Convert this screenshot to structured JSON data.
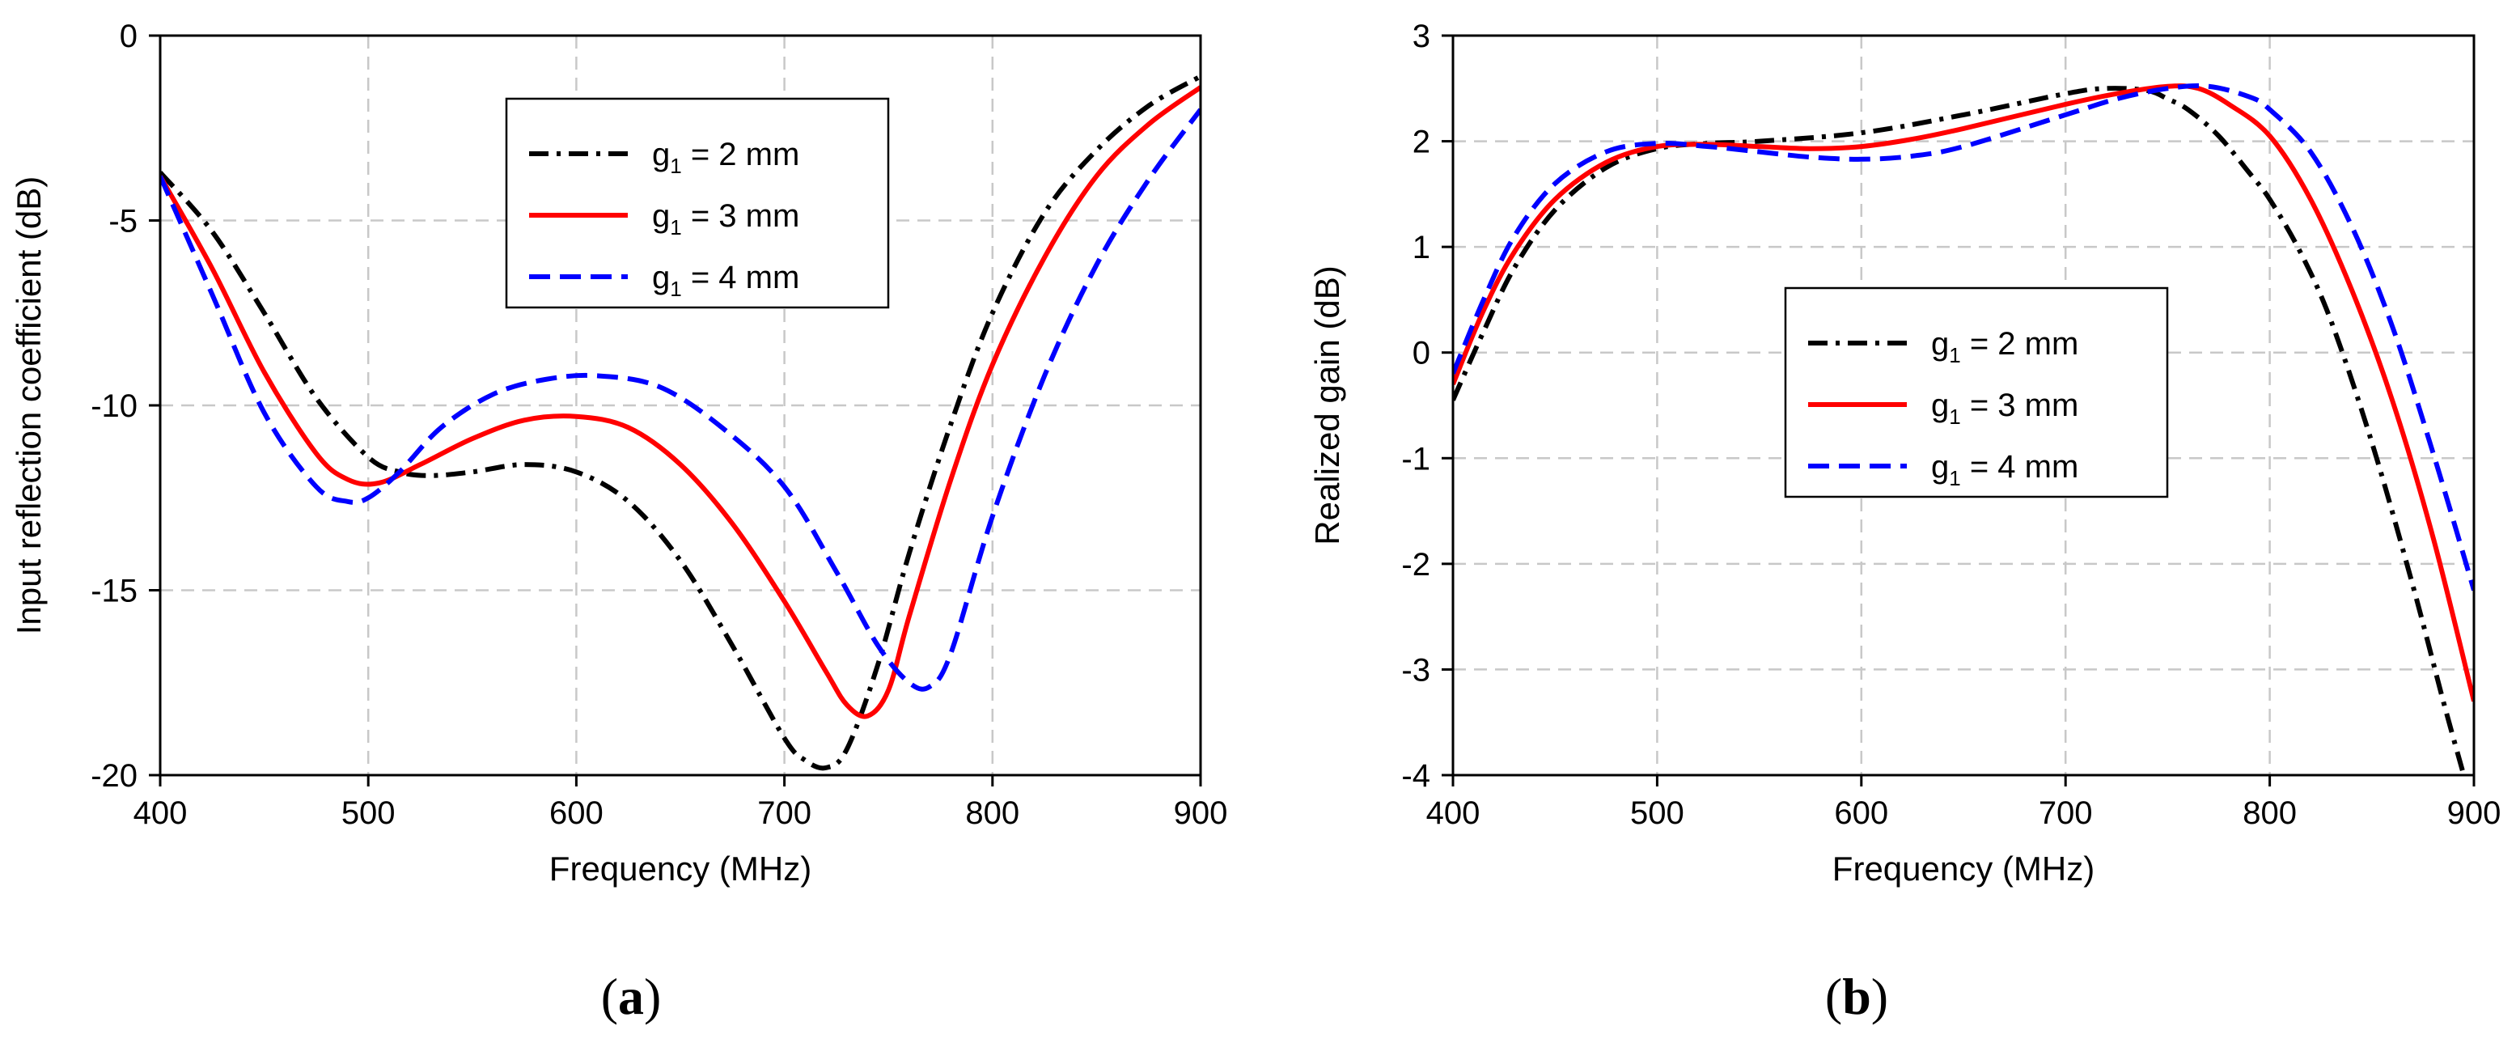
{
  "chart_data": [
    {
      "type": "line",
      "panel_label": "a",
      "title": "",
      "xlabel": "Frequency (MHz)",
      "ylabel": "Input reflection coefficient (dB)",
      "xlim": [
        400,
        900
      ],
      "ylim": [
        -20,
        0
      ],
      "xticks": [
        400,
        500,
        600,
        700,
        800,
        900
      ],
      "yticks": [
        -20,
        -15,
        -10,
        -5,
        0
      ],
      "grid": true,
      "legend_position": "top-right",
      "series": [
        {
          "name": "g1 = 2 mm",
          "label_main": "g",
          "label_sub": "1",
          "label_rest": " = 2 mm",
          "color": "#000000",
          "dash": "dashdot",
          "x": [
            400,
            425,
            450,
            475,
            500,
            515,
            530,
            550,
            575,
            600,
            625,
            650,
            675,
            700,
            710,
            720,
            730,
            745,
            760,
            780,
            800,
            825,
            850,
            875,
            900
          ],
          "y": [
            -3.7,
            -5.3,
            -7.5,
            -9.8,
            -11.4,
            -11.8,
            -11.9,
            -11.8,
            -11.6,
            -11.8,
            -12.6,
            -14.2,
            -16.5,
            -19.0,
            -19.6,
            -19.8,
            -19.3,
            -17.0,
            -14.0,
            -10.5,
            -7.5,
            -4.8,
            -3.1,
            -1.9,
            -1.1
          ]
        },
        {
          "name": "g1 = 3 mm",
          "label_main": "g",
          "label_sub": "1",
          "label_rest": " = 3 mm",
          "color": "#ff0000",
          "dash": "solid",
          "x": [
            400,
            425,
            450,
            475,
            490,
            505,
            525,
            550,
            575,
            600,
            625,
            650,
            675,
            700,
            720,
            730,
            740,
            750,
            760,
            780,
            800,
            825,
            850,
            875,
            900
          ],
          "y": [
            -3.8,
            -6.3,
            -9.1,
            -11.3,
            -12.0,
            -12.1,
            -11.6,
            -10.9,
            -10.4,
            -10.3,
            -10.6,
            -11.6,
            -13.2,
            -15.3,
            -17.2,
            -18.1,
            -18.4,
            -17.7,
            -15.7,
            -12.0,
            -8.9,
            -6.0,
            -3.8,
            -2.4,
            -1.4
          ]
        },
        {
          "name": "g1 = 4 mm",
          "label_main": "g",
          "label_sub": "1",
          "label_rest": " = 4 mm",
          "color": "#0000ff",
          "dash": "dashed",
          "x": [
            400,
            425,
            450,
            475,
            490,
            500,
            515,
            535,
            560,
            585,
            610,
            640,
            670,
            700,
            725,
            745,
            760,
            770,
            780,
            800,
            825,
            850,
            875,
            900
          ],
          "y": [
            -3.8,
            -7.0,
            -10.2,
            -12.2,
            -12.6,
            -12.5,
            -11.8,
            -10.6,
            -9.7,
            -9.3,
            -9.2,
            -9.5,
            -10.6,
            -12.2,
            -14.5,
            -16.5,
            -17.5,
            -17.6,
            -16.7,
            -13.0,
            -9.2,
            -6.2,
            -3.9,
            -2.0
          ]
        }
      ]
    },
    {
      "type": "line",
      "panel_label": "b",
      "title": "",
      "xlabel": "Frequency (MHz)",
      "ylabel": "Realized gain (dB)",
      "xlim": [
        400,
        900
      ],
      "ylim": [
        -4,
        3
      ],
      "xticks": [
        400,
        500,
        600,
        700,
        800,
        900
      ],
      "yticks": [
        -4,
        -3,
        -2,
        -1,
        0,
        1,
        2,
        3
      ],
      "grid": true,
      "legend_position": "center-right",
      "series": [
        {
          "name": "g1 = 2 mm",
          "label_main": "g",
          "label_sub": "1",
          "label_rest": " = 2 mm",
          "color": "#000000",
          "dash": "dashdot",
          "x": [
            400,
            415,
            430,
            450,
            475,
            500,
            525,
            550,
            600,
            650,
            700,
            720,
            740,
            750,
            760,
            775,
            790,
            800,
            815,
            830,
            850,
            870,
            885,
            895
          ],
          "y": [
            -0.45,
            0.2,
            0.8,
            1.35,
            1.75,
            1.93,
            1.98,
            2.0,
            2.08,
            2.25,
            2.45,
            2.5,
            2.48,
            2.4,
            2.3,
            2.05,
            1.7,
            1.45,
            0.95,
            0.3,
            -0.85,
            -2.2,
            -3.3,
            -4.0
          ]
        },
        {
          "name": "g1 = 3 mm",
          "label_main": "g",
          "label_sub": "1",
          "label_rest": " = 3 mm",
          "color": "#ff0000",
          "dash": "solid",
          "x": [
            400,
            415,
            430,
            450,
            475,
            500,
            525,
            550,
            575,
            600,
            625,
            650,
            700,
            725,
            750,
            765,
            780,
            800,
            820,
            840,
            860,
            880,
            900
          ],
          "y": [
            -0.3,
            0.4,
            0.95,
            1.45,
            1.8,
            1.95,
            1.97,
            1.95,
            1.93,
            1.95,
            2.02,
            2.12,
            2.35,
            2.45,
            2.52,
            2.5,
            2.35,
            2.05,
            1.45,
            0.6,
            -0.45,
            -1.75,
            -3.3
          ]
        },
        {
          "name": "g1 = 4 mm",
          "label_main": "g",
          "label_sub": "1",
          "label_rest": " = 4 mm",
          "color": "#0000ff",
          "dash": "dashed",
          "x": [
            400,
            415,
            430,
            450,
            475,
            500,
            525,
            550,
            575,
            600,
            625,
            650,
            700,
            725,
            750,
            770,
            790,
            800,
            820,
            840,
            860,
            880,
            900
          ],
          "y": [
            -0.2,
            0.5,
            1.1,
            1.6,
            1.9,
            1.98,
            1.95,
            1.9,
            1.85,
            1.83,
            1.86,
            1.95,
            2.25,
            2.4,
            2.5,
            2.52,
            2.42,
            2.3,
            1.9,
            1.2,
            0.25,
            -0.95,
            -2.25
          ]
        }
      ]
    }
  ]
}
